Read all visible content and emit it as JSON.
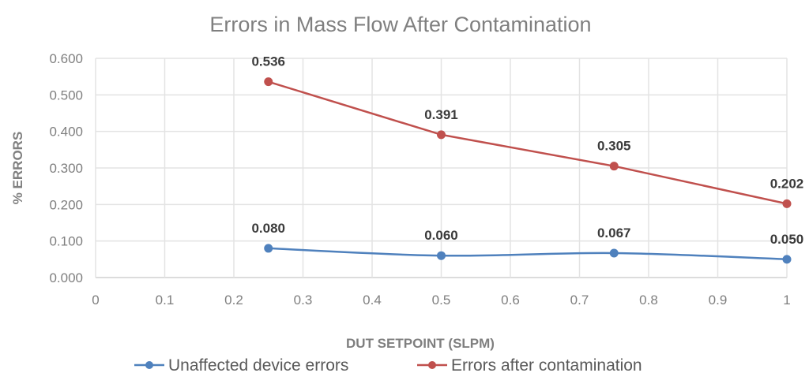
{
  "chart_data": {
    "type": "line",
    "title": "Errors in Mass Flow After Contamination",
    "xlabel": "DUT SETPOINT (SLPM)",
    "ylabel": "% ERRORS",
    "xlim": [
      0,
      1
    ],
    "ylim": [
      0,
      0.6
    ],
    "x_ticks": [
      "0",
      "0.1",
      "0.2",
      "0.3",
      "0.4",
      "0.5",
      "0.6",
      "0.7",
      "0.8",
      "0.9",
      "1"
    ],
    "y_ticks": [
      "0.000",
      "0.100",
      "0.200",
      "0.300",
      "0.400",
      "0.500",
      "0.600"
    ],
    "grid": true,
    "legend_position": "bottom",
    "x": [
      0.25,
      0.5,
      0.75,
      1
    ],
    "series": [
      {
        "name": "Unaffected device errors",
        "color": "#4f81bd",
        "smooth": true,
        "values": [
          0.08,
          0.06,
          0.067,
          0.05
        ],
        "labels": [
          "0.080",
          "0.060",
          "0.067",
          "0.050"
        ]
      },
      {
        "name": "Errors after contamination",
        "color": "#c0504d",
        "smooth": false,
        "values": [
          0.536,
          0.391,
          0.305,
          0.202
        ],
        "labels": [
          "0.536",
          "0.391",
          "0.305",
          "0.202"
        ]
      }
    ]
  }
}
